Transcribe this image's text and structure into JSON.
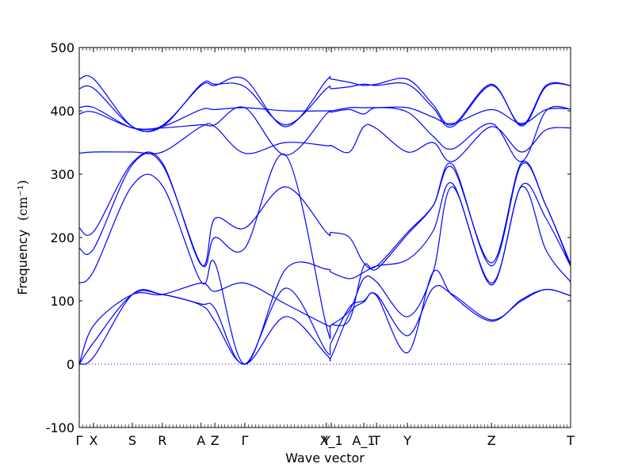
{
  "chart_data": {
    "type": "line",
    "xlabel": "Wave vector",
    "ylabel": "Frequency",
    "ylabel_unit": "(cm⁻¹)",
    "ylim": [
      -100,
      500
    ],
    "yticks": [
      -100,
      0,
      100,
      200,
      300,
      400,
      500
    ],
    "xlim": [
      0,
      1
    ],
    "xticks": [
      {
        "label": "Γ",
        "x": 0.0
      },
      {
        "label": "X",
        "x": 0.029
      },
      {
        "label": "S",
        "x": 0.108
      },
      {
        "label": "R",
        "x": 0.169
      },
      {
        "label": "A",
        "x": 0.248
      },
      {
        "label": "Z",
        "x": 0.276
      },
      {
        "label": "Γ",
        "x": 0.337
      },
      {
        "label": "Y",
        "x": 0.503
      },
      {
        "label": "X_1",
        "x": 0.513
      },
      {
        "label": "A_1",
        "x": 0.579
      },
      {
        "label": "T",
        "x": 0.605
      },
      {
        "label": "Y",
        "x": 0.668
      },
      {
        "label": "Z",
        "x": 0.839
      },
      {
        "label": "T",
        "x": 1.0
      }
    ],
    "zero_line": {
      "y": 0,
      "style": "dotted"
    },
    "series_color": "#0000ff",
    "series": [
      {
        "x": [
          0,
          0.03,
          0.108,
          0.169,
          0.248,
          0.276,
          0.337,
          0.42,
          0.503,
          0.513,
          0.55,
          0.579,
          0.605,
          0.668,
          0.72,
          0.76,
          0.839,
          0.9,
          0.95,
          1.0
        ],
        "y": [
          0,
          12,
          110,
          110,
          93,
          68,
          0,
          75,
          15,
          12,
          80,
          98,
          108,
          18,
          145,
          108,
          68,
          102,
          118,
          108
        ]
      },
      {
        "x": [
          0,
          0.03,
          0.108,
          0.169,
          0.248,
          0.276,
          0.337,
          0.42,
          0.503,
          0.513,
          0.55,
          0.579,
          0.605,
          0.668,
          0.72,
          0.76,
          0.839,
          0.9,
          0.95,
          1.0
        ],
        "y": [
          0,
          35,
          110,
          110,
          95,
          88,
          0,
          120,
          20,
          35,
          90,
          100,
          110,
          45,
          120,
          110,
          70,
          100,
          118,
          108
        ]
      },
      {
        "x": [
          0,
          0.03,
          0.108,
          0.169,
          0.248,
          0.276,
          0.337,
          0.42,
          0.503,
          0.513,
          0.55,
          0.579,
          0.605,
          0.668,
          0.72,
          0.76,
          0.839,
          0.9,
          0.95,
          1.0
        ],
        "y": [
          0,
          62,
          110,
          110,
          128,
          115,
          128,
          95,
          62,
          62,
          85,
          135,
          130,
          75,
          145,
          280,
          125,
          280,
          180,
          130
        ]
      },
      {
        "x": [
          0,
          0.03,
          0.108,
          0.169,
          0.248,
          0.276,
          0.337,
          0.42,
          0.503,
          0.513,
          0.55,
          0.579,
          0.605,
          0.668,
          0.72,
          0.76,
          0.839,
          0.9,
          0.95,
          1.0
        ],
        "y": [
          128,
          148,
          282,
          282,
          130,
          160,
          0,
          150,
          150,
          145,
          135,
          145,
          155,
          165,
          210,
          285,
          128,
          282,
          230,
          155
        ]
      },
      {
        "x": [
          0,
          0.03,
          0.108,
          0.169,
          0.248,
          0.276,
          0.337,
          0.42,
          0.503,
          0.513,
          0.55,
          0.579,
          0.605,
          0.668,
          0.72,
          0.76,
          0.839,
          0.9,
          0.95,
          1.0
        ],
        "y": [
          183,
          183,
          315,
          315,
          158,
          200,
          183,
          330,
          60,
          62,
          70,
          155,
          150,
          205,
          250,
          315,
          155,
          315,
          250,
          155
        ]
      },
      {
        "x": [
          0,
          0.03,
          0.108,
          0.169,
          0.248,
          0.276,
          0.337,
          0.42,
          0.503,
          0.513,
          0.55,
          0.579,
          0.605,
          0.668,
          0.72,
          0.76,
          0.839,
          0.9,
          0.95,
          1.0
        ],
        "y": [
          215,
          210,
          318,
          318,
          157,
          230,
          215,
          280,
          208,
          208,
          200,
          160,
          155,
          208,
          250,
          310,
          160,
          318,
          250,
          158
        ]
      },
      {
        "x": [
          0,
          0.03,
          0.108,
          0.169,
          0.248,
          0.276,
          0.337,
          0.42,
          0.503,
          0.513,
          0.55,
          0.579,
          0.605,
          0.668,
          0.72,
          0.76,
          0.839,
          0.9,
          0.95,
          1.0
        ],
        "y": [
          333,
          335,
          335,
          335,
          375,
          375,
          333,
          350,
          345,
          345,
          335,
          375,
          372,
          335,
          350,
          320,
          375,
          335,
          370,
          373
        ]
      },
      {
        "x": [
          0,
          0.03,
          0.108,
          0.169,
          0.248,
          0.276,
          0.337,
          0.42,
          0.503,
          0.513,
          0.55,
          0.579,
          0.605,
          0.668,
          0.72,
          0.76,
          0.839,
          0.9,
          0.95,
          1.0
        ],
        "y": [
          395,
          398,
          373,
          373,
          378,
          378,
          405,
          330,
          395,
          398,
          402,
          395,
          405,
          398,
          360,
          340,
          380,
          320,
          400,
          403
        ]
      },
      {
        "x": [
          0,
          0.03,
          0.108,
          0.169,
          0.248,
          0.276,
          0.337,
          0.42,
          0.503,
          0.513,
          0.55,
          0.579,
          0.605,
          0.668,
          0.72,
          0.76,
          0.839,
          0.9,
          0.95,
          1.0
        ],
        "y": [
          405,
          405,
          373,
          375,
          402,
          402,
          405,
          400,
          400,
          400,
          405,
          405,
          405,
          405,
          390,
          380,
          402,
          380,
          402,
          403
        ]
      },
      {
        "x": [
          0,
          0.03,
          0.108,
          0.169,
          0.248,
          0.276,
          0.337,
          0.42,
          0.503,
          0.513,
          0.55,
          0.579,
          0.605,
          0.668,
          0.72,
          0.76,
          0.839,
          0.9,
          0.95,
          1.0
        ],
        "y": [
          435,
          435,
          375,
          375,
          442,
          442,
          438,
          378,
          435,
          435,
          438,
          442,
          440,
          442,
          405,
          375,
          440,
          378,
          440,
          440
        ]
      },
      {
        "x": [
          0,
          0.03,
          0.108,
          0.169,
          0.248,
          0.276,
          0.337,
          0.42,
          0.503,
          0.513,
          0.55,
          0.579,
          0.605,
          0.668,
          0.72,
          0.76,
          0.839,
          0.9,
          0.95,
          1.0
        ],
        "y": [
          450,
          450,
          375,
          377,
          440,
          440,
          450,
          375,
          448,
          450,
          445,
          440,
          442,
          450,
          410,
          378,
          442,
          376,
          438,
          440
        ]
      }
    ]
  }
}
